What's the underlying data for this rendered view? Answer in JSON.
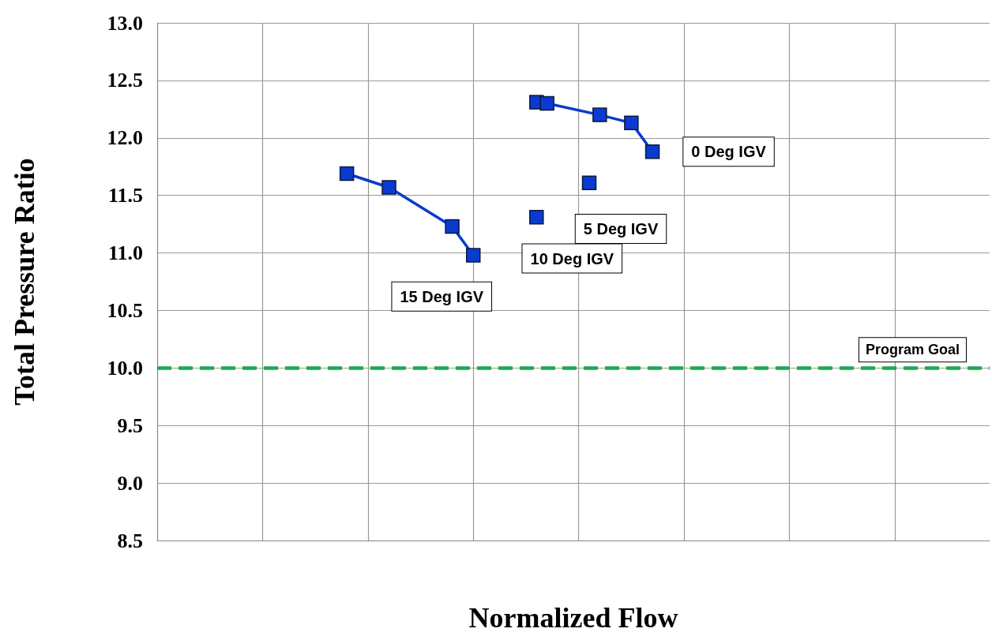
{
  "chart_data": {
    "type": "line",
    "xlabel": "Normalized Flow",
    "ylabel": "Total Pressure Ratio",
    "categories": [
      null,
      null,
      null,
      null,
      null,
      null,
      null,
      null,
      null,
      null,
      null,
      null,
      null,
      null,
      null,
      null,
      null,
      null,
      null,
      null,
      null,
      null,
      null,
      null,
      null,
      null,
      null,
      null,
      null,
      null,
      null,
      null,
      null,
      null,
      null,
      null,
      null,
      null,
      null,
      null,
      null,
      null,
      null,
      null,
      null,
      null,
      null,
      null,
      null,
      null,
      null,
      null,
      null,
      null,
      null,
      null,
      null,
      null,
      null,
      null,
      null,
      null,
      null,
      null,
      null,
      null,
      null,
      null,
      null,
      null,
      null,
      null,
      null,
      null,
      null,
      null,
      null,
      null,
      null,
      null
    ],
    "ylim": [
      8.5,
      13.0
    ],
    "yticks": [
      {
        "value": 8.5,
        "label": "8.5"
      },
      {
        "value": 9,
        "label": "9.0"
      },
      {
        "value": 9.5,
        "label": "9.5"
      },
      {
        "value": 10,
        "label": "10.0"
      },
      {
        "value": 10.5,
        "label": "10.5"
      },
      {
        "value": 11,
        "label": "11.0"
      },
      {
        "value": 11.5,
        "label": "11.5"
      },
      {
        "value": 12,
        "label": "12.0"
      },
      {
        "value": 12.5,
        "label": "12.5"
      },
      {
        "value": 13,
        "label": "13.0"
      }
    ],
    "grid": true,
    "marker": "square",
    "series": [
      {
        "name": "15 Deg IGV",
        "color": "#0a3ad0",
        "values": [
          null,
          null,
          null,
          null,
          null,
          null,
          null,
          null,
          null,
          null,
          null,
          null,
          null,
          null,
          null,
          null,
          null,
          null,
          11.69,
          null,
          null,
          null,
          11.57,
          null,
          null,
          null,
          null,
          null,
          11.23,
          null,
          10.98,
          null,
          null,
          null,
          null,
          null,
          null,
          null,
          null,
          null,
          null,
          null,
          null,
          null,
          null,
          null,
          null,
          null,
          null,
          null,
          null,
          null,
          null,
          null,
          null,
          null,
          null,
          null,
          null,
          null,
          null,
          null,
          null,
          null,
          null,
          null,
          null,
          null,
          null,
          null,
          null,
          null,
          null,
          null,
          null,
          null,
          null,
          null,
          null,
          null
        ]
      },
      {
        "name": "10 Deg IGV",
        "type": "scatter",
        "color": "#0a3ad0",
        "values": [
          null,
          null,
          null,
          null,
          null,
          null,
          null,
          null,
          null,
          null,
          null,
          null,
          null,
          null,
          null,
          null,
          null,
          null,
          null,
          null,
          null,
          null,
          null,
          null,
          null,
          null,
          null,
          null,
          null,
          null,
          null,
          null,
          null,
          null,
          null,
          null,
          11.31,
          null,
          null,
          null,
          null,
          null,
          null,
          null,
          null,
          null,
          null,
          null,
          null,
          null,
          null,
          null,
          null,
          null,
          null,
          null,
          null,
          null,
          null,
          null,
          null,
          null,
          null,
          null,
          null,
          null,
          null,
          null,
          null,
          null,
          null,
          null,
          null,
          null,
          null,
          null,
          null,
          null,
          null,
          null
        ]
      },
      {
        "name": "5 Deg IGV",
        "type": "scatter",
        "color": "#0a3ad0",
        "values": [
          null,
          null,
          null,
          null,
          null,
          null,
          null,
          null,
          null,
          null,
          null,
          null,
          null,
          null,
          null,
          null,
          null,
          null,
          null,
          null,
          null,
          null,
          null,
          null,
          null,
          null,
          null,
          null,
          null,
          null,
          null,
          null,
          null,
          null,
          null,
          null,
          null,
          null,
          null,
          null,
          null,
          11.61,
          null,
          null,
          null,
          null,
          null,
          null,
          null,
          null,
          null,
          null,
          null,
          null,
          null,
          null,
          null,
          null,
          null,
          null,
          null,
          null,
          null,
          null,
          null,
          null,
          null,
          null,
          null,
          null,
          null,
          null,
          null,
          null,
          null,
          null,
          null,
          null,
          null,
          null
        ]
      },
      {
        "name": "0 Deg IGV",
        "color": "#0a3ad0",
        "values": [
          null,
          null,
          null,
          null,
          null,
          null,
          null,
          null,
          null,
          null,
          null,
          null,
          null,
          null,
          null,
          null,
          null,
          null,
          null,
          null,
          null,
          null,
          null,
          null,
          null,
          null,
          null,
          null,
          null,
          null,
          null,
          null,
          null,
          null,
          null,
          null,
          12.31,
          12.3,
          null,
          null,
          null,
          null,
          12.2,
          null,
          null,
          12.13,
          null,
          11.88,
          null,
          null,
          null,
          null,
          null,
          null,
          null,
          null,
          null,
          null,
          null,
          null,
          null,
          null,
          null,
          null,
          null,
          null,
          null,
          null,
          null,
          null,
          null,
          null,
          null,
          null,
          null,
          null,
          null,
          null,
          null,
          null
        ]
      }
    ],
    "ref_lines": [
      {
        "axis": "y",
        "value": 10,
        "label": "Program Goal",
        "color": "#1aaa50",
        "line_style": "dashed"
      }
    ]
  }
}
